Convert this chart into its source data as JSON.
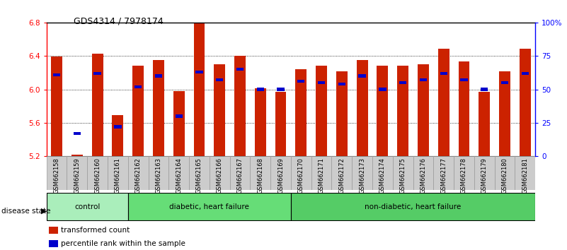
{
  "title": "GDS4314 / 7978174",
  "samples": [
    "GSM662158",
    "GSM662159",
    "GSM662160",
    "GSM662161",
    "GSM662162",
    "GSM662163",
    "GSM662164",
    "GSM662165",
    "GSM662166",
    "GSM662167",
    "GSM662168",
    "GSM662169",
    "GSM662170",
    "GSM662171",
    "GSM662172",
    "GSM662173",
    "GSM662174",
    "GSM662175",
    "GSM662176",
    "GSM662177",
    "GSM662178",
    "GSM662179",
    "GSM662180",
    "GSM662181"
  ],
  "red_values": [
    6.39,
    5.22,
    6.43,
    5.69,
    6.28,
    6.35,
    5.98,
    6.79,
    6.3,
    6.4,
    6.01,
    5.97,
    6.24,
    6.28,
    6.22,
    6.35,
    6.28,
    6.28,
    6.3,
    6.49,
    6.33,
    5.97,
    6.22,
    6.49
  ],
  "blue_values": [
    61,
    17,
    62,
    22,
    52,
    60,
    30,
    63,
    57,
    65,
    50,
    50,
    56,
    55,
    54,
    60,
    50,
    55,
    57,
    62,
    57,
    50,
    55,
    62
  ],
  "y_min": 5.2,
  "y_max": 6.8,
  "bar_color": "#cc2200",
  "blue_color": "#0000cc",
  "yticks": [
    5.2,
    5.6,
    6.0,
    6.4,
    6.8
  ],
  "right_ticks": [
    0,
    25,
    50,
    75,
    100
  ],
  "right_tick_labels": [
    "0",
    "25",
    "50",
    "75",
    "100%"
  ],
  "groups": [
    {
      "label": "control",
      "start": 0,
      "end": 4,
      "color": "#aaeebb"
    },
    {
      "label": "diabetic, heart failure",
      "start": 4,
      "end": 12,
      "color": "#66dd77"
    },
    {
      "label": "non-diabetic, heart failure",
      "start": 12,
      "end": 24,
      "color": "#55cc66"
    }
  ],
  "disease_state_label": "disease state",
  "legend_red_label": "transformed count",
  "legend_blue_label": "percentile rank within the sample",
  "tick_bg_color": "#cccccc",
  "tick_border_color": "#999999"
}
